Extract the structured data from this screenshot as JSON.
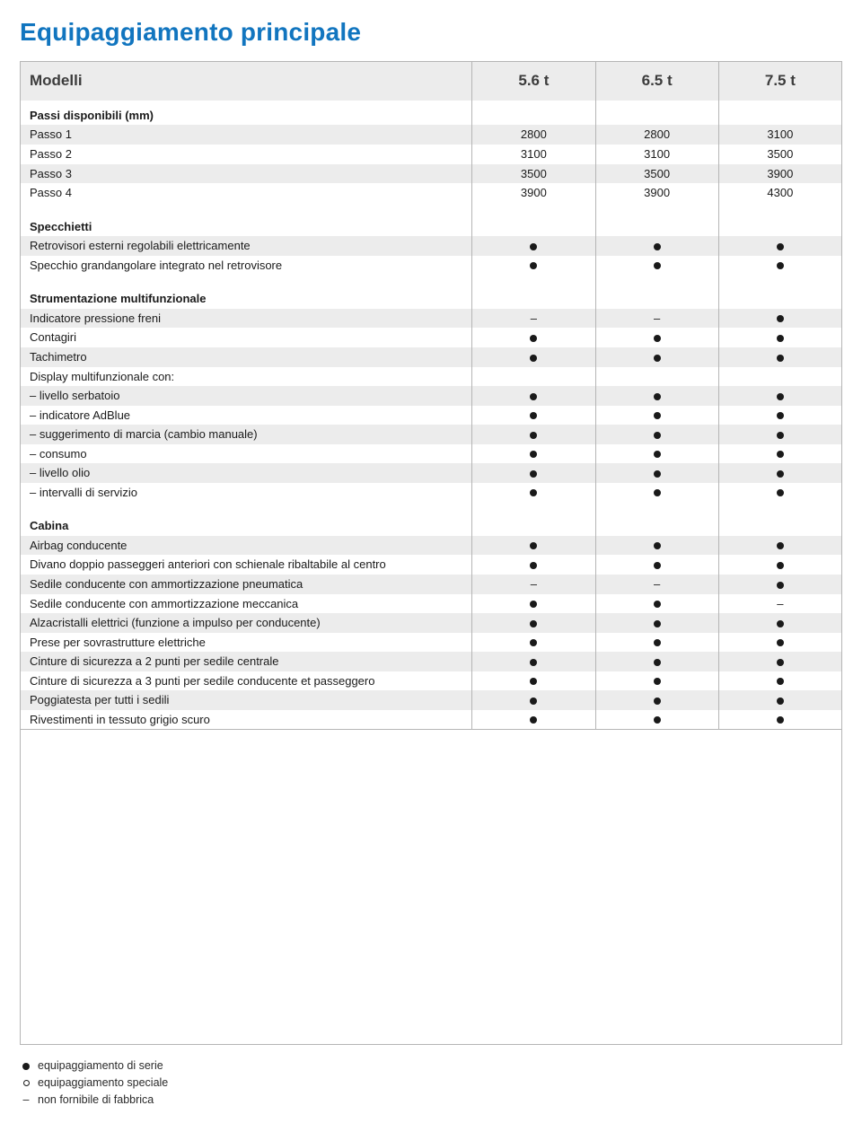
{
  "title": "Equipaggiamento principale",
  "header": {
    "label": "Modelli",
    "cols": [
      "5.6 t",
      "6.5 t",
      "7.5 t"
    ]
  },
  "colors": {
    "title": "#1175bf",
    "shade": "#ececec",
    "border": "#b5b5b5",
    "text": "#1a1a1a",
    "bg": "#ffffff"
  },
  "rows": [
    {
      "type": "section",
      "label": "Passi disponibili (mm)"
    },
    {
      "label": "Passo 1",
      "vals": [
        "2800",
        "2800",
        "3100"
      ],
      "shade": true
    },
    {
      "label": "Passo 2",
      "vals": [
        "3100",
        "3100",
        "3500"
      ]
    },
    {
      "label": "Passo 3",
      "vals": [
        "3500",
        "3500",
        "3900"
      ],
      "shade": true
    },
    {
      "label": "Passo 4",
      "vals": [
        "3900",
        "3900",
        "4300"
      ]
    },
    {
      "type": "spacer"
    },
    {
      "type": "section",
      "label": "Specchietti"
    },
    {
      "label": "Retrovisori esterni regolabili elettricamente",
      "vals": [
        "dot",
        "dot",
        "dot"
      ],
      "shade": true
    },
    {
      "label": "Specchio grandangolare integrato nel retrovisore",
      "vals": [
        "dot",
        "dot",
        "dot"
      ]
    },
    {
      "type": "spacer"
    },
    {
      "type": "section",
      "label": "Strumentazione multifunzionale"
    },
    {
      "label": "Indicatore pressione freni",
      "vals": [
        "dash",
        "dash",
        "dot"
      ],
      "shade": true
    },
    {
      "label": "Contagiri",
      "vals": [
        "dot",
        "dot",
        "dot"
      ]
    },
    {
      "label": "Tachimetro",
      "vals": [
        "dot",
        "dot",
        "dot"
      ],
      "shade": true
    },
    {
      "label": "Display multifunzionale con:",
      "vals": [
        "",
        "",
        ""
      ]
    },
    {
      "label": "– livello serbatoio",
      "vals": [
        "dot",
        "dot",
        "dot"
      ],
      "shade": true
    },
    {
      "label": "– indicatore AdBlue",
      "vals": [
        "dot",
        "dot",
        "dot"
      ]
    },
    {
      "label": "– suggerimento di marcia (cambio manuale)",
      "vals": [
        "dot",
        "dot",
        "dot"
      ],
      "shade": true
    },
    {
      "label": "– consumo",
      "vals": [
        "dot",
        "dot",
        "dot"
      ]
    },
    {
      "label": "– livello olio",
      "vals": [
        "dot",
        "dot",
        "dot"
      ],
      "shade": true
    },
    {
      "label": "– intervalli di servizio",
      "vals": [
        "dot",
        "dot",
        "dot"
      ]
    },
    {
      "type": "spacer"
    },
    {
      "type": "section",
      "label": "Cabina"
    },
    {
      "label": "Airbag conducente",
      "vals": [
        "dot",
        "dot",
        "dot"
      ],
      "shade": true
    },
    {
      "label": "Divano doppio passeggeri anteriori con schienale ribaltabile al centro",
      "vals": [
        "dot",
        "dot",
        "dot"
      ]
    },
    {
      "label": "Sedile conducente con ammortizzazione pneumatica",
      "vals": [
        "dash",
        "dash",
        "dot"
      ],
      "shade": true
    },
    {
      "label": "Sedile conducente con ammortizzazione meccanica",
      "vals": [
        "dot",
        "dot",
        "dash"
      ]
    },
    {
      "label": "Alzacristalli elettrici (funzione a impulso per conducente)",
      "vals": [
        "dot",
        "dot",
        "dot"
      ],
      "shade": true
    },
    {
      "label": "Prese per sovrastrutture elettriche",
      "vals": [
        "dot",
        "dot",
        "dot"
      ]
    },
    {
      "label": "Cinture di sicurezza a 2 punti per sedile centrale",
      "vals": [
        "dot",
        "dot",
        "dot"
      ],
      "shade": true
    },
    {
      "label": "Cinture di sicurezza a 3 punti per sedile conducente et passeggero",
      "vals": [
        "dot",
        "dot",
        "dot"
      ]
    },
    {
      "label": "Poggiatesta per tutti i sedili",
      "vals": [
        "dot",
        "dot",
        "dot"
      ],
      "shade": true
    },
    {
      "label": "Rivestimenti in tessuto grigio scuro",
      "vals": [
        "dot",
        "dot",
        "dot"
      ]
    }
  ],
  "legend": {
    "serie": "equipaggiamento di serie",
    "speciale": "equipaggiamento speciale",
    "non_fornibile": "non fornibile di fabbrica"
  }
}
